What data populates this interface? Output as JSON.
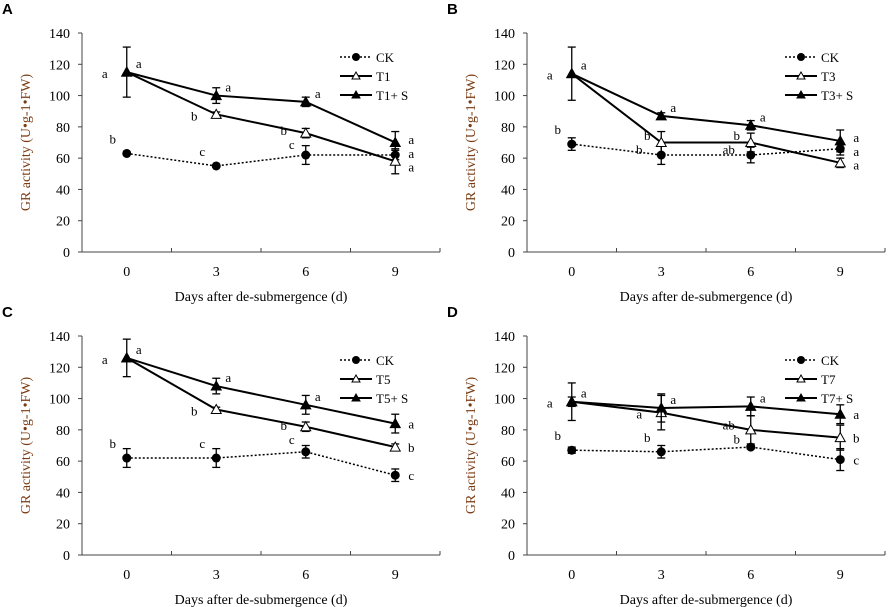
{
  "chart_data": [
    {
      "panel": "A",
      "type": "line",
      "xlabel": "Days after de-submergence (d)",
      "ylabel": "GR activity  (U•g-1•FW)",
      "ylim": [
        0,
        140
      ],
      "yticks": [
        0,
        20,
        40,
        60,
        80,
        100,
        120,
        140
      ],
      "categories": [
        "0",
        "3",
        "6",
        "9"
      ],
      "legend": "top-right",
      "series": [
        {
          "name": "CK",
          "style": "dotted-circle",
          "values": [
            63,
            55,
            62,
            62
          ],
          "errors": [
            0,
            0,
            6,
            3
          ],
          "letters": [
            "b",
            "c",
            "c",
            "a"
          ]
        },
        {
          "name": "T1",
          "style": "solid-open-triangle",
          "values": [
            115,
            88,
            76,
            58
          ],
          "errors": [
            0,
            1.5,
            3,
            8
          ],
          "letters": [
            "a",
            "b",
            "b",
            "a"
          ]
        },
        {
          "name": "T1+ S",
          "style": "solid-filled-triangle",
          "values": [
            115,
            100,
            96,
            70
          ],
          "errors": [
            16,
            5,
            3,
            7
          ],
          "letters": [
            "a",
            "a",
            "a",
            "a"
          ]
        }
      ]
    },
    {
      "panel": "B",
      "type": "line",
      "xlabel": "Days after de-submergence (d)",
      "ylabel": "GR activity  (U•g-1•FW)",
      "ylim": [
        0,
        140
      ],
      "yticks": [
        0,
        20,
        40,
        60,
        80,
        100,
        120,
        140
      ],
      "categories": [
        "0",
        "3",
        "6",
        "9"
      ],
      "legend": "top-right",
      "series": [
        {
          "name": "CK",
          "style": "dotted-circle",
          "values": [
            69,
            62,
            62,
            66
          ],
          "errors": [
            4,
            6,
            5,
            4
          ],
          "letters": [
            "b",
            "b",
            "b",
            "a"
          ]
        },
        {
          "name": "T3",
          "style": "solid-open-triangle",
          "values": [
            114,
            70,
            70,
            57
          ],
          "errors": [
            0,
            7,
            6,
            3
          ],
          "letters": [
            "a",
            "b",
            "ab",
            "a"
          ]
        },
        {
          "name": "T3+ S",
          "style": "solid-filled-triangle",
          "values": [
            114,
            87,
            81,
            71
          ],
          "errors": [
            17,
            2,
            3,
            7
          ],
          "letters": [
            "a",
            "a",
            "a",
            "a"
          ]
        }
      ]
    },
    {
      "panel": "C",
      "type": "line",
      "xlabel": "Days after de-submergence (d)",
      "ylabel": "GR activity  (U•g-1•FW)",
      "ylim": [
        0,
        140
      ],
      "yticks": [
        0,
        20,
        40,
        60,
        80,
        100,
        120,
        140
      ],
      "categories": [
        "0",
        "3",
        "6",
        "9"
      ],
      "legend": "top-right",
      "series": [
        {
          "name": "CK",
          "style": "dotted-circle",
          "values": [
            62,
            62,
            66,
            51
          ],
          "errors": [
            6,
            6,
            4,
            4
          ],
          "letters": [
            "b",
            "c",
            "c",
            "c"
          ]
        },
        {
          "name": "T5",
          "style": "solid-open-triangle",
          "values": [
            126,
            93,
            82,
            69
          ],
          "errors": [
            0,
            1.5,
            3,
            2
          ],
          "letters": [
            "a",
            "b",
            "b",
            "b"
          ]
        },
        {
          "name": "T5+ S",
          "style": "solid-filled-triangle",
          "values": [
            126,
            108,
            96,
            84
          ],
          "errors": [
            12,
            5,
            6,
            6
          ],
          "letters": [
            "a",
            "a",
            "a",
            "a"
          ]
        }
      ]
    },
    {
      "panel": "D",
      "type": "line",
      "xlabel": "Days after de-submergence (d)",
      "ylabel": "GR activity  (U•g-1•FW)",
      "ylim": [
        0,
        140
      ],
      "yticks": [
        0,
        20,
        40,
        60,
        80,
        100,
        120,
        140
      ],
      "categories": [
        "0",
        "3",
        "6",
        "9"
      ],
      "legend": "top-right",
      "series": [
        {
          "name": "CK",
          "style": "dotted-circle",
          "values": [
            67,
            66,
            69,
            61
          ],
          "errors": [
            2,
            4,
            1,
            7
          ],
          "letters": [
            "b",
            "b",
            "b",
            "c"
          ]
        },
        {
          "name": "T7",
          "style": "solid-open-triangle",
          "values": [
            98,
            91,
            80,
            75
          ],
          "errors": [
            3,
            11,
            9,
            8
          ],
          "letters": [
            "a",
            "a",
            "ab",
            "b"
          ]
        },
        {
          "name": "T7+ S",
          "style": "solid-filled-triangle",
          "values": [
            98,
            94,
            95,
            90
          ],
          "errors": [
            12,
            9,
            6,
            6
          ],
          "letters": [
            "a",
            "a",
            "a",
            "a"
          ]
        }
      ]
    }
  ]
}
